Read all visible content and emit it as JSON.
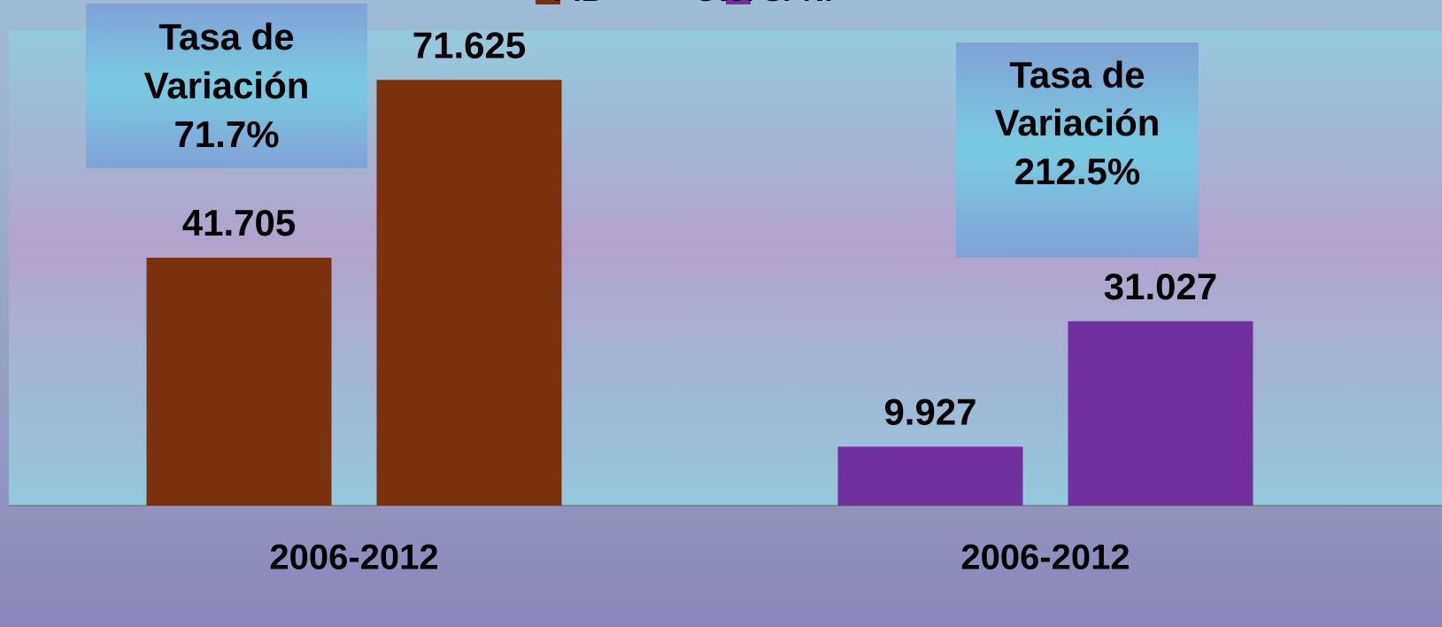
{
  "chart_data": {
    "type": "bar",
    "categories": [
      "2006-2012",
      "2006-2012"
    ],
    "series": [
      {
        "name": "PIB",
        "color": "#7a310c",
        "values": [
          41.705,
          71.625
        ]
      },
      {
        "name": "Gto. SPNF",
        "color": "#71309d",
        "values": [
          9.927,
          31.027
        ]
      }
    ],
    "ylim": [
      0,
      80
    ],
    "annotations": [
      {
        "lines": [
          "Tasa de",
          "Variación",
          "71.7%"
        ]
      },
      {
        "lines": [
          "Tasa de",
          "Variación",
          "212.5%"
        ]
      }
    ]
  }
}
